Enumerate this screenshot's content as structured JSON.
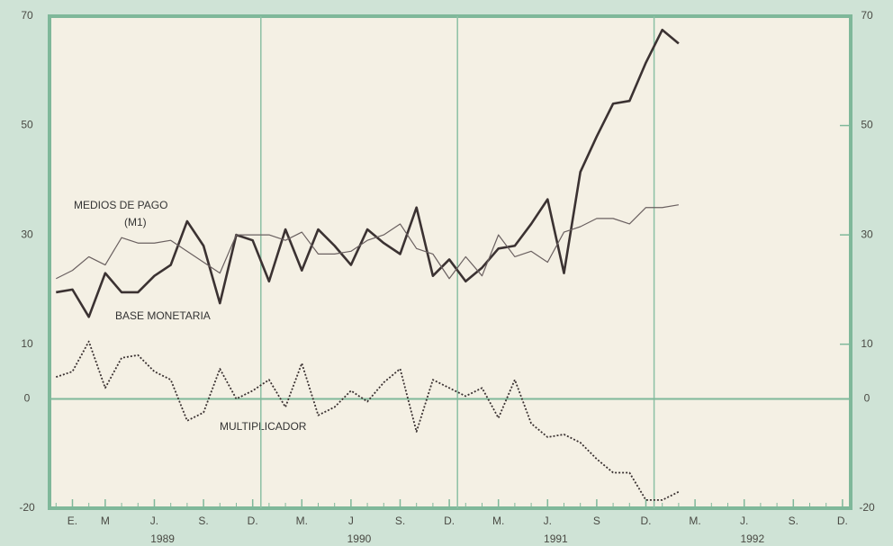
{
  "chart_data": {
    "type": "line",
    "annotations": [
      "MEDIOS DE PAGO",
      "(M1)",
      "BASE MONETARIA",
      "MULTIPLICADOR"
    ],
    "x": [
      -1,
      0,
      1,
      2,
      3,
      4,
      5,
      6,
      7,
      8,
      9,
      10,
      11,
      12,
      13,
      14,
      15,
      16,
      17,
      18,
      19,
      20,
      21,
      22,
      23,
      24,
      25,
      26,
      27,
      28,
      29,
      30,
      31,
      32,
      33,
      34,
      35,
      36,
      37
    ],
    "series": [
      {
        "name": "BASE MONETARIA",
        "color": "#3b3232",
        "width": 2.6,
        "dash": "none",
        "values": [
          19.5,
          20,
          15,
          23,
          19.5,
          19.5,
          22.5,
          24.5,
          32.5,
          28,
          17.5,
          30,
          29,
          21.5,
          31,
          23.5,
          31,
          28,
          24.5,
          31,
          28.5,
          26.5,
          35,
          22.5,
          25.5,
          21.5,
          24,
          27.5,
          28,
          32,
          36.5,
          23,
          41.5,
          48,
          54,
          54.5,
          61.5,
          67.5,
          65
        ]
      },
      {
        "name": "MEDIOS DE PAGO (M1)",
        "color": "#6a6060",
        "width": 1.2,
        "dash": "none",
        "values": [
          22,
          23.5,
          26,
          24.5,
          29.5,
          28.5,
          28.5,
          29,
          27,
          25,
          23,
          30,
          30,
          30,
          29,
          30.5,
          26.5,
          26.5,
          27,
          29,
          30,
          32,
          27.5,
          26.5,
          22,
          26,
          22.5,
          30,
          26,
          27,
          25,
          30.5,
          31.5,
          33,
          33,
          32,
          35,
          35,
          35.5
        ]
      },
      {
        "name": "MULTIPLICADOR",
        "color": "#3b3232",
        "width": 1.8,
        "dash": "2 2",
        "values": [
          4,
          5,
          10.5,
          2,
          7.5,
          8,
          5,
          3.5,
          -4,
          -2.5,
          5.5,
          0,
          1.5,
          3.5,
          -1.5,
          6.5,
          -3,
          -1.5,
          1.5,
          -0.5,
          3,
          5.5,
          -6,
          3.5,
          2,
          0.5,
          2,
          -3.5,
          3.5,
          -4.5,
          -7,
          -6.5,
          -8,
          -11,
          -13.5,
          -13.5,
          -18.5,
          -18.5,
          -17
        ]
      }
    ],
    "xlim": [
      -1.4,
      47.5
    ],
    "xticks": [
      {
        "value": 0,
        "label": "E."
      },
      {
        "value": 2,
        "label": "M"
      },
      {
        "value": 5,
        "label": "J."
      },
      {
        "value": 8,
        "label": "S."
      },
      {
        "value": 11,
        "label": "D."
      },
      {
        "value": 14,
        "label": "M."
      },
      {
        "value": 17,
        "label": "J"
      },
      {
        "value": 20,
        "label": "S."
      },
      {
        "value": 23,
        "label": "D."
      },
      {
        "value": 26,
        "label": "M."
      },
      {
        "value": 29,
        "label": "J."
      },
      {
        "value": 32,
        "label": "S"
      },
      {
        "value": 35,
        "label": "D."
      },
      {
        "value": 38,
        "label": "M."
      },
      {
        "value": 41,
        "label": "J."
      },
      {
        "value": 44,
        "label": "S."
      },
      {
        "value": 47,
        "label": "D."
      }
    ],
    "years": [
      "1989",
      "1990",
      "1991",
      "1992"
    ],
    "ylim": [
      -20,
      70
    ],
    "yticks": [
      -20,
      0,
      10,
      30,
      50,
      70
    ]
  }
}
